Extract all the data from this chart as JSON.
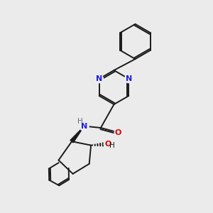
{
  "bg_color": "#ebebeb",
  "bond_color": "#1a1a1a",
  "N_color": "#2020dd",
  "O_color": "#dd0000",
  "H_color": "#607070",
  "bond_lw": 1.4,
  "figsize": [
    3.0,
    3.0
  ],
  "dpi": 100,
  "xlim": [
    0,
    10
  ],
  "ylim": [
    0,
    10
  ]
}
